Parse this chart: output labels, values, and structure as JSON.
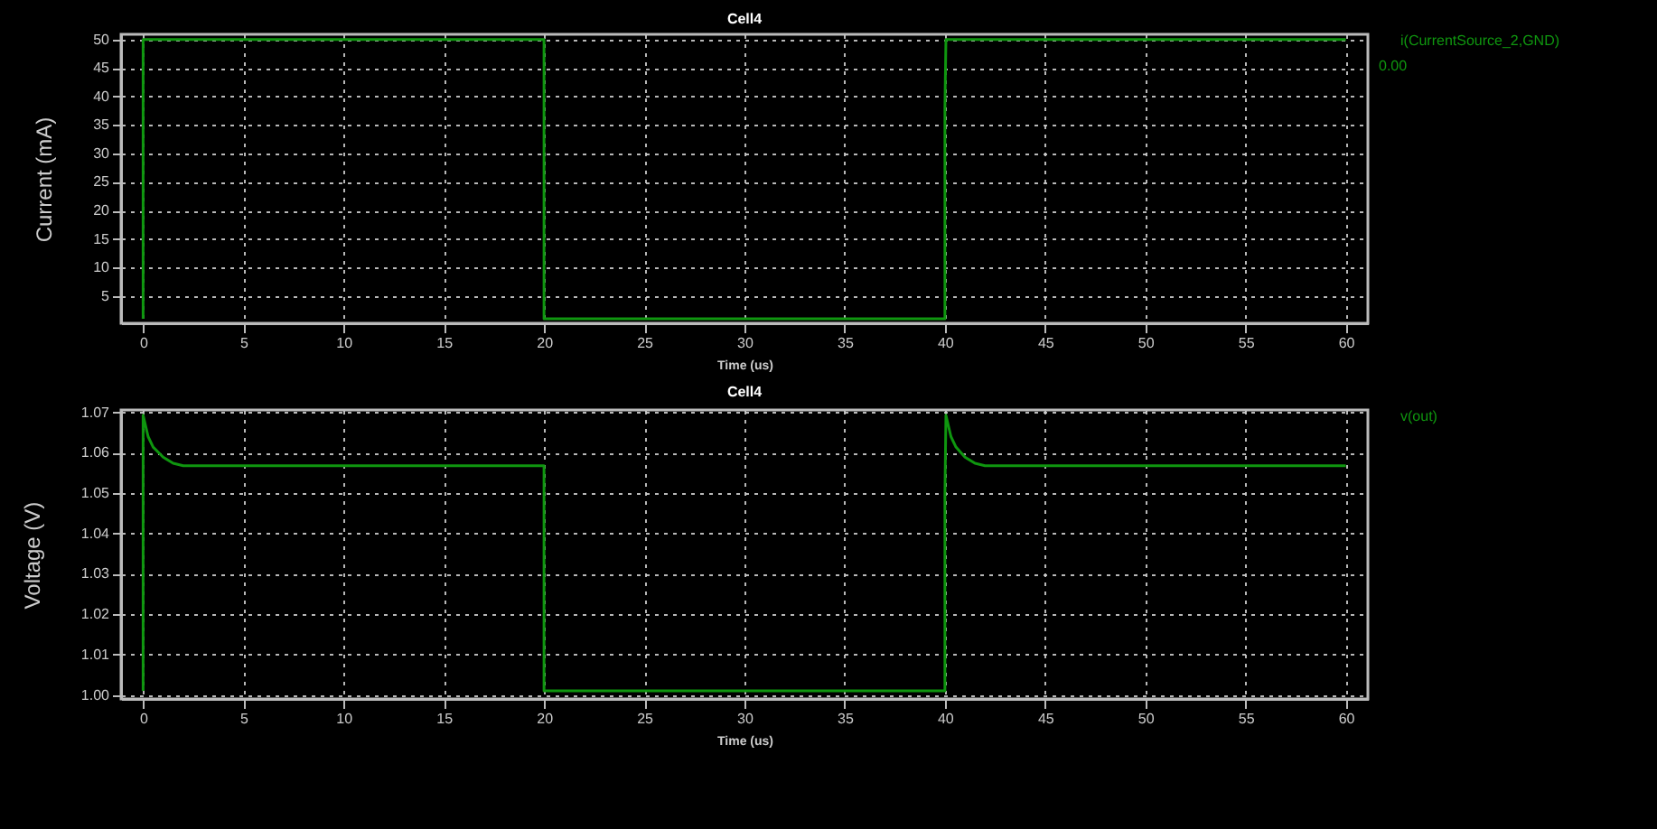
{
  "chart_data": [
    {
      "type": "line",
      "title": "Cell4",
      "xlabel": "Time (us)",
      "ylabel": "Current (mA)",
      "xlim": [
        -1.1,
        61.1
      ],
      "xticks": [
        0,
        5,
        10,
        15,
        20,
        25,
        30,
        35,
        40,
        45,
        50,
        55,
        60
      ],
      "ylim": [
        0.2,
        50.9
      ],
      "yticks": [
        5,
        10,
        15,
        20,
        25,
        30,
        35,
        40,
        45,
        50
      ],
      "grid": true,
      "legend": "top right",
      "annotations": [
        "0.00"
      ],
      "series": [
        {
          "name": "i(CurrentSource_2,GND)",
          "color": "#0f960f",
          "x": [
            0,
            0,
            20,
            20,
            40,
            40,
            40.05,
            60
          ],
          "values": [
            1,
            50,
            50,
            1,
            1,
            38,
            50,
            50
          ]
        }
      ]
    },
    {
      "type": "line",
      "title": "Cell4",
      "xlabel": "Time (us)",
      "ylabel": "Voltage (V)",
      "xlim": [
        -1.1,
        61.1
      ],
      "xticks": [
        0,
        5,
        10,
        15,
        20,
        25,
        30,
        35,
        40,
        45,
        50,
        55,
        60
      ],
      "ylim": [
        0.999,
        1.0706
      ],
      "yticks": [
        {
          "value": 1,
          "label": "1.00"
        },
        1.01,
        1.02,
        1.03,
        1.04,
        1.05,
        1.06,
        1.07
      ],
      "grid": true,
      "legend": "top right",
      "series": [
        {
          "name": "v(out)",
          "color": "#0f960f",
          "x": [
            0,
            0,
            0.25,
            0.5,
            1,
            1.5,
            2,
            20,
            20,
            40,
            40,
            40.05,
            40.3,
            40.55,
            41,
            41.5,
            42,
            60
          ],
          "values": [
            1.001,
            1.0693,
            1.064,
            1.0614,
            1.0589,
            1.0574,
            1.0568,
            1.0568,
            1.001,
            1.001,
            1.049,
            1.0693,
            1.064,
            1.0614,
            1.0589,
            1.0574,
            1.0568,
            1.0568
          ]
        }
      ]
    }
  ]
}
